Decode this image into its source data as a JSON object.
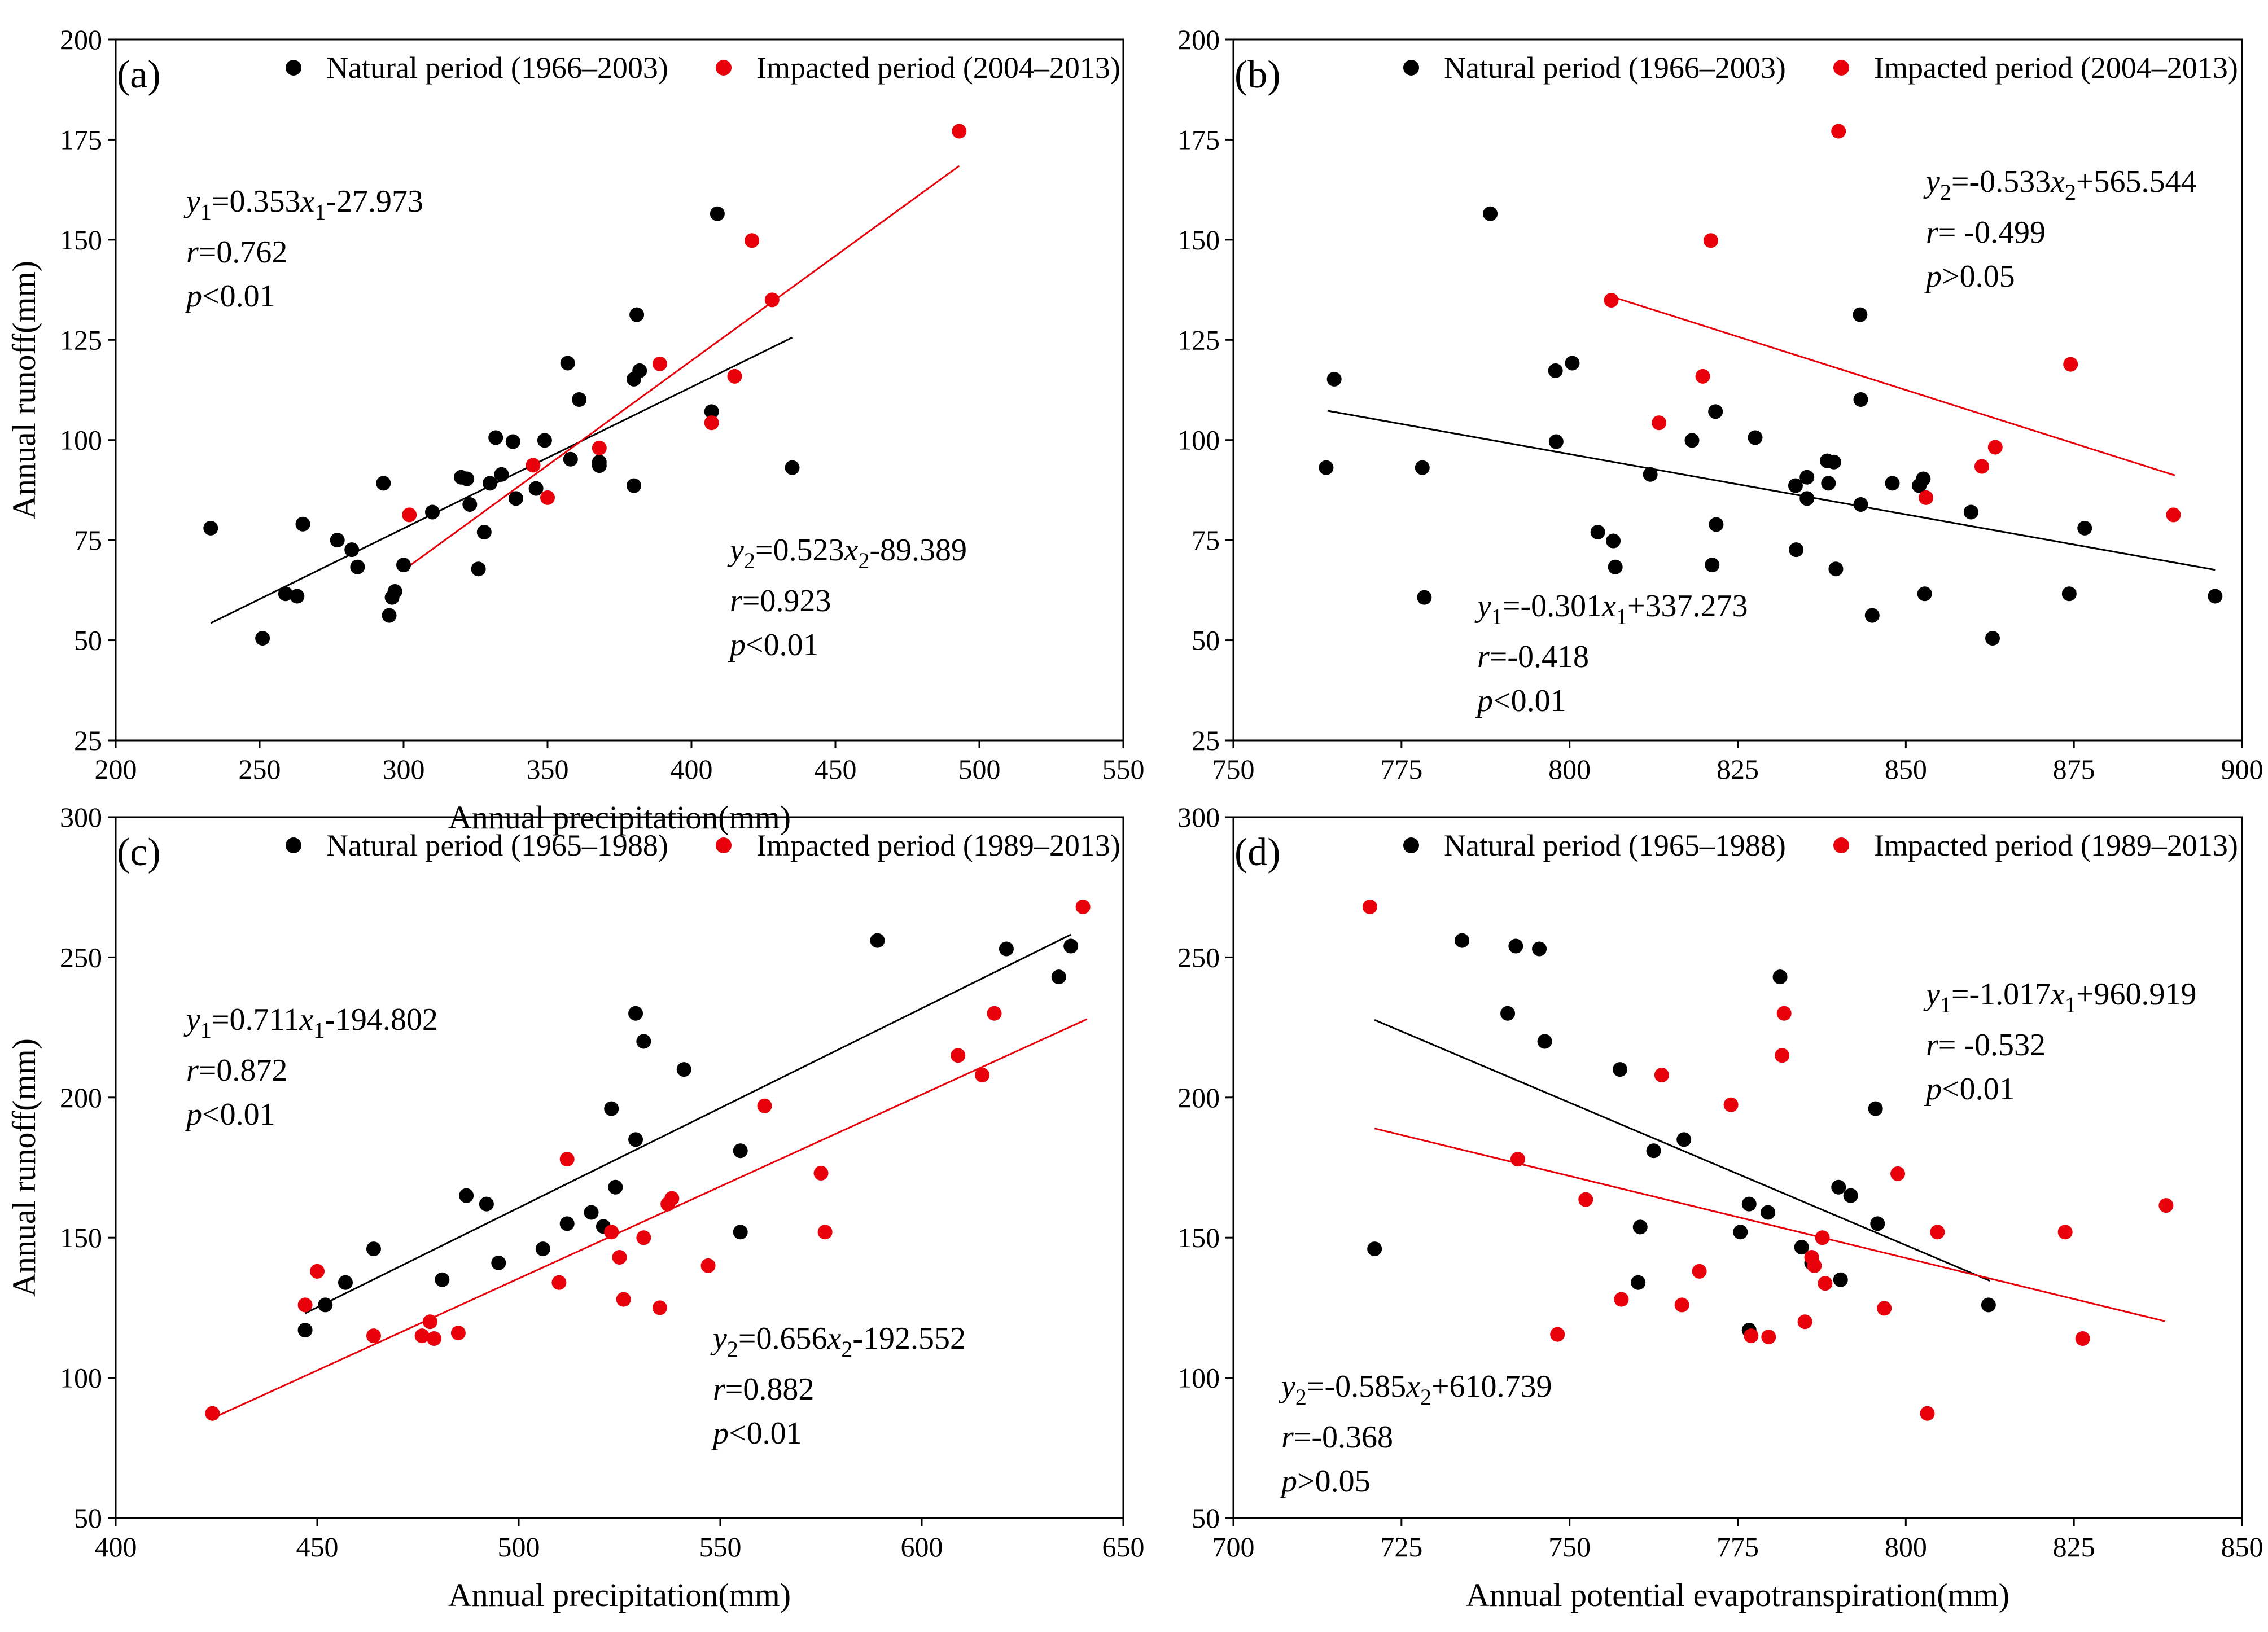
{
  "figure": {
    "x_axis_labels": [
      "Annual precipitation(mm)",
      "Annual potential evapotranspiration(mm)"
    ],
    "y_axis_label": "Annual runoff(mm)"
  },
  "chart_data": [
    {
      "panel": "(a)",
      "type": "scatter",
      "xlabel": "Annual precipitation(mm)",
      "ylabel": "Annual runoff(mm)",
      "xlim": [
        200,
        550
      ],
      "ylim": [
        25,
        200
      ],
      "xticks": [
        200,
        250,
        300,
        350,
        400,
        450,
        500,
        550
      ],
      "yticks": [
        25,
        50,
        75,
        100,
        125,
        150,
        175,
        200
      ],
      "legend": [
        "Natural period (1966–2003)",
        "Impacted period (2004–2013)"
      ],
      "series": [
        {
          "name": "Natural period (1966–2003)",
          "color": "#000000",
          "points": [
            [
              233,
              78
            ],
            [
              251,
              50.5
            ],
            [
              259,
              61.6
            ],
            [
              263,
              61
            ],
            [
              265,
              79
            ],
            [
              277,
              75
            ],
            [
              282,
              72.6
            ],
            [
              284,
              68.3
            ],
            [
              293,
              89.2
            ],
            [
              295,
              56.2
            ],
            [
              296,
              60.7
            ],
            [
              297,
              62.2
            ],
            [
              300,
              68.8
            ],
            [
              310,
              82
            ],
            [
              320,
              90.7
            ],
            [
              322,
              90.3
            ],
            [
              323,
              83.9
            ],
            [
              326,
              67.8
            ],
            [
              328,
              77
            ],
            [
              330,
              89.2
            ],
            [
              332,
              100.6
            ],
            [
              334,
              91.4
            ],
            [
              338,
              99.6
            ],
            [
              339,
              85.4
            ],
            [
              346,
              87.9
            ],
            [
              349,
              99.9
            ],
            [
              357,
              119.2
            ],
            [
              358,
              95.2
            ],
            [
              361,
              110.1
            ],
            [
              368,
              93.6
            ],
            [
              368,
              94.5
            ],
            [
              380,
              88.6
            ],
            [
              380,
              115.2
            ],
            [
              381,
              131.3
            ],
            [
              382,
              117.3
            ],
            [
              407,
              107.1
            ],
            [
              409,
              156.5
            ],
            [
              435,
              93.1
            ]
          ]
        },
        {
          "name": "Impacted period (2004–2013)",
          "color": "#e8000b",
          "points": [
            [
              302,
              81.3
            ],
            [
              345,
              93.7
            ],
            [
              350,
              85.6
            ],
            [
              368,
              98
            ],
            [
              389,
              119
            ],
            [
              407,
              104.3
            ],
            [
              415,
              115.9
            ],
            [
              421,
              149.8
            ],
            [
              428,
              135
            ],
            [
              493,
              177.1
            ]
          ]
        }
      ],
      "fits": [
        {
          "label": "y1=0.353x1-27.973",
          "r": "r=0.762",
          "p": "p<0.01",
          "slope": 0.353,
          "intercept": -27.973,
          "x_range": [
            233,
            435
          ],
          "color": "#000000"
        },
        {
          "label": "y2=0.523x2-89.389",
          "r": "r=0.923",
          "p": "p<0.01",
          "slope": 0.523,
          "intercept": -89.389,
          "x_range": [
            302,
            493
          ],
          "color": "#e8000b"
        }
      ]
    },
    {
      "panel": "(b)",
      "type": "scatter",
      "xlabel": "",
      "ylabel": "",
      "xlim": [
        750,
        900
      ],
      "ylim": [
        25,
        200
      ],
      "xticks": [
        750,
        775,
        800,
        825,
        850,
        875,
        900
      ],
      "yticks": [
        25,
        50,
        75,
        100,
        125,
        150,
        175,
        200
      ],
      "legend": [
        "Natural period (1966–2003)",
        "Impacted period (2004–2013)"
      ],
      "series": [
        {
          "name": "Natural period (1966–2003)",
          "color": "#000000",
          "points": [
            [
              763.8,
              93.1
            ],
            [
              765,
              115.2
            ],
            [
              778.1,
              93.1
            ],
            [
              778.4,
              60.7
            ],
            [
              788.2,
              156.5
            ],
            [
              797.9,
              117.3
            ],
            [
              798,
              99.6
            ],
            [
              800.4,
              119.2
            ],
            [
              804.2,
              77
            ],
            [
              806.5,
              74.8
            ],
            [
              806.8,
              68.3
            ],
            [
              812,
              91.4
            ],
            [
              818.2,
              99.9
            ],
            [
              821.2,
              68.8
            ],
            [
              821.7,
              107.1
            ],
            [
              821.8,
              78.9
            ],
            [
              827.6,
              100.6
            ],
            [
              833.6,
              88.6
            ],
            [
              833.7,
              72.6
            ],
            [
              835.3,
              90.7
            ],
            [
              835.3,
              85.4
            ],
            [
              838.3,
              94.8
            ],
            [
              838.5,
              89.2
            ],
            [
              839.3,
              94.5
            ],
            [
              839.6,
              67.8
            ],
            [
              843.2,
              131.3
            ],
            [
              843.3,
              110.1
            ],
            [
              843.3,
              83.9
            ],
            [
              845,
              56.2
            ],
            [
              848,
              89.2
            ],
            [
              852,
              88.6
            ],
            [
              852.6,
              90.3
            ],
            [
              852.8,
              61.6
            ],
            [
              859.7,
              82
            ],
            [
              862.9,
              50.5
            ],
            [
              874.3,
              61.6
            ],
            [
              876.6,
              78
            ],
            [
              896,
              61
            ]
          ]
        },
        {
          "name": "Impacted period (2004–2013)",
          "color": "#e8000b",
          "points": [
            [
              806.2,
              134.9
            ],
            [
              813.3,
              104.3
            ],
            [
              819.8,
              115.9
            ],
            [
              821,
              149.8
            ],
            [
              840,
              177.1
            ],
            [
              853,
              85.6
            ],
            [
              861.3,
              93.4
            ],
            [
              863.3,
              98.2
            ],
            [
              874.5,
              118.9
            ],
            [
              889.8,
              81.3
            ]
          ]
        }
      ],
      "fits": [
        {
          "label": "y1=-0.301x1+337.273",
          "r": "r=-0.418",
          "p": "p<0.01",
          "slope": -0.301,
          "intercept": 337.273,
          "x_range": [
            764,
            896
          ],
          "color": "#000000"
        },
        {
          "label": "y2=-0.533x2+565.544",
          "r": "r= -0.499",
          "p": "p>0.05",
          "slope": -0.533,
          "intercept": 565.544,
          "x_range": [
            806,
            890
          ],
          "color": "#e8000b"
        }
      ]
    },
    {
      "panel": "(c)",
      "type": "scatter",
      "xlabel": "Annual precipitation(mm)",
      "ylabel": "Annual runoff(mm)",
      "xlim": [
        400,
        650
      ],
      "ylim": [
        50,
        300
      ],
      "xticks": [
        400,
        450,
        500,
        550,
        600,
        650
      ],
      "yticks": [
        50,
        100,
        150,
        200,
        250,
        300
      ],
      "legend": [
        "Natural period (1965–1988)",
        "Impacted period (1989–2013)"
      ],
      "series": [
        {
          "name": "Natural period (1965–1988)",
          "color": "#000000",
          "points": [
            [
              447,
              117
            ],
            [
              452,
              126
            ],
            [
              457,
              134
            ],
            [
              464,
              146
            ],
            [
              481,
              135
            ],
            [
              487,
              165
            ],
            [
              492,
              162
            ],
            [
              495,
              141
            ],
            [
              506,
              146
            ],
            [
              512,
              155
            ],
            [
              518,
              159
            ],
            [
              521,
              154
            ],
            [
              523,
              196
            ],
            [
              524,
              168
            ],
            [
              529,
              185
            ],
            [
              529,
              230
            ],
            [
              531,
              220
            ],
            [
              541,
              210
            ],
            [
              555,
              181
            ],
            [
              555,
              152
            ],
            [
              589,
              256
            ],
            [
              621,
              253
            ],
            [
              634,
              243
            ],
            [
              637,
              254
            ]
          ]
        },
        {
          "name": "Impacted period (1989–2013)",
          "color": "#e8000b",
          "points": [
            [
              424,
              87.3
            ],
            [
              447,
              126
            ],
            [
              450,
              138
            ],
            [
              464,
              115
            ],
            [
              476,
              115
            ],
            [
              478,
              120
            ],
            [
              479,
              114
            ],
            [
              485,
              116
            ],
            [
              510,
              134
            ],
            [
              512,
              178
            ],
            [
              523,
              152
            ],
            [
              525,
              143
            ],
            [
              526,
              128
            ],
            [
              531,
              150
            ],
            [
              535,
              125
            ],
            [
              537,
              162
            ],
            [
              538,
              164
            ],
            [
              547,
              140
            ],
            [
              561,
              197
            ],
            [
              575,
              173
            ],
            [
              576,
              152
            ],
            [
              609,
              215
            ],
            [
              615,
              208
            ],
            [
              618,
              230
            ],
            [
              640,
              268
            ]
          ]
        }
      ],
      "fits": [
        {
          "label": "y1=0.711x1-194.802",
          "r": "r=0.872",
          "p": "p<0.01",
          "slope": 0.711,
          "intercept": -194.802,
          "x_range": [
            447,
            637
          ],
          "color": "#000000"
        },
        {
          "label": "y2=0.656x2-192.552",
          "r": "r=0.882",
          "p": "p<0.01",
          "slope": 0.656,
          "intercept": -192.552,
          "x_range": [
            424,
            641
          ],
          "color": "#e8000b"
        }
      ]
    },
    {
      "panel": "(d)",
      "type": "scatter",
      "xlabel": "Annual potential evapotranspiration(mm)",
      "ylabel": "",
      "xlim": [
        700,
        850
      ],
      "ylim": [
        50,
        300
      ],
      "xticks": [
        700,
        725,
        750,
        775,
        800,
        825,
        850
      ],
      "yticks": [
        50,
        100,
        150,
        200,
        250,
        300
      ],
      "legend": [
        "Natural period (1965–1988)",
        "Impacted period (1989–2013)"
      ],
      "series": [
        {
          "name": "Natural period (1965–1988)",
          "color": "#000000",
          "points": [
            [
              721,
              146
            ],
            [
              734,
              256
            ],
            [
              740.8,
              230
            ],
            [
              742,
              254
            ],
            [
              745.5,
              253
            ],
            [
              746.3,
              220
            ],
            [
              757.5,
              210
            ],
            [
              760.2,
              134
            ],
            [
              760.5,
              153.8
            ],
            [
              762.5,
              181
            ],
            [
              767,
              185
            ],
            [
              775.4,
              152
            ],
            [
              776.7,
              117
            ],
            [
              776.7,
              162
            ],
            [
              779.5,
              159
            ],
            [
              781.3,
              243
            ],
            [
              784.5,
              146.6
            ],
            [
              786,
              141
            ],
            [
              790,
              168
            ],
            [
              790.3,
              135
            ],
            [
              791.8,
              165
            ],
            [
              795.5,
              196
            ],
            [
              795.8,
              155
            ],
            [
              812.3,
              126
            ]
          ]
        },
        {
          "name": "Impacted period (1989–2013)",
          "color": "#e8000b",
          "points": [
            [
              720.3,
              268
            ],
            [
              742.3,
              178
            ],
            [
              748.2,
              115.5
            ],
            [
              752.4,
              163.6
            ],
            [
              757.7,
              128
            ],
            [
              763.7,
              208
            ],
            [
              766.7,
              126
            ],
            [
              769.3,
              138
            ],
            [
              774,
              197.4
            ],
            [
              777,
              115
            ],
            [
              779.6,
              114.6
            ],
            [
              781.6,
              215
            ],
            [
              781.9,
              230
            ],
            [
              785,
              120
            ],
            [
              786,
              143
            ],
            [
              786.4,
              140
            ],
            [
              787.6,
              150
            ],
            [
              788,
              133.7
            ],
            [
              796.8,
              124.8
            ],
            [
              798.8,
              172.8
            ],
            [
              803.2,
              87.3
            ],
            [
              804.7,
              152
            ],
            [
              823.7,
              152
            ],
            [
              826.3,
              114
            ],
            [
              838.7,
              161.5
            ]
          ]
        }
      ],
      "fits": [
        {
          "label": "y1=-1.017x1+960.919",
          "r": "r= -0.532",
          "p": "p<0.01",
          "slope": -1.017,
          "intercept": 960.919,
          "x_range": [
            721,
            812.5
          ],
          "color": "#000000"
        },
        {
          "label": "y2=-0.585x2+610.739",
          "r": "r=-0.368",
          "p": "p>0.05",
          "slope": -0.585,
          "intercept": 610.739,
          "x_range": [
            721,
            838.5
          ],
          "color": "#e8000b"
        }
      ]
    }
  ]
}
